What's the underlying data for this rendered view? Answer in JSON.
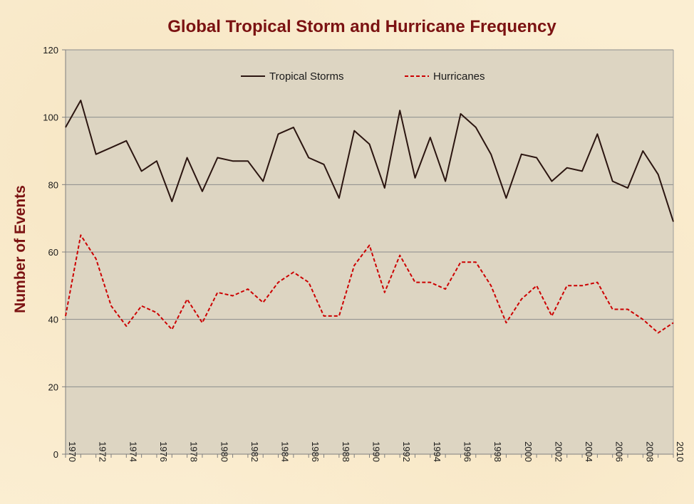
{
  "chart_data": {
    "type": "line",
    "title": "Global Tropical Storm and Hurricane Frequency",
    "xlabel": "",
    "ylabel": "Number of Events",
    "x": [
      1970,
      1971,
      1972,
      1973,
      1974,
      1975,
      1976,
      1977,
      1978,
      1979,
      1980,
      1981,
      1982,
      1983,
      1984,
      1985,
      1986,
      1987,
      1988,
      1989,
      1990,
      1991,
      1992,
      1993,
      1994,
      1995,
      1996,
      1997,
      1998,
      1999,
      2000,
      2001,
      2002,
      2003,
      2004,
      2005,
      2006,
      2007,
      2008,
      2009,
      2010
    ],
    "xticks": [
      "1970",
      "1972",
      "1974",
      "1976",
      "1978",
      "1980",
      "1982",
      "1984",
      "1986",
      "1988",
      "1990",
      "1992",
      "1994",
      "1996",
      "1998",
      "2000",
      "2002",
      "2004",
      "2006",
      "2008",
      "2010"
    ],
    "ylim": [
      0,
      120
    ],
    "yticks": [
      "0",
      "20",
      "40",
      "60",
      "80",
      "100",
      "120"
    ],
    "grid": true,
    "legend_position": "top",
    "plot_background": "#ddd5c2",
    "series": [
      {
        "name": "Tropical Storms",
        "color": "#2b1510",
        "dash": "solid",
        "values": [
          97,
          105,
          89,
          91,
          93,
          84,
          87,
          75,
          88,
          78,
          88,
          87,
          87,
          81,
          95,
          97,
          88,
          86,
          76,
          96,
          92,
          79,
          102,
          82,
          94,
          81,
          101,
          97,
          89,
          76,
          89,
          88,
          81,
          85,
          84,
          95,
          81,
          79,
          90,
          83,
          69
        ]
      },
      {
        "name": "Hurricanes",
        "color": "#cc0000",
        "dash": "dashed",
        "values": [
          41,
          65,
          58,
          44,
          38,
          44,
          42,
          37,
          46,
          39,
          48,
          47,
          49,
          45,
          51,
          54,
          51,
          41,
          41,
          56,
          62,
          48,
          59,
          51,
          51,
          49,
          57,
          57,
          50,
          39,
          46,
          50,
          41,
          50,
          50,
          51,
          43,
          43,
          40,
          36,
          39
        ]
      }
    ]
  }
}
